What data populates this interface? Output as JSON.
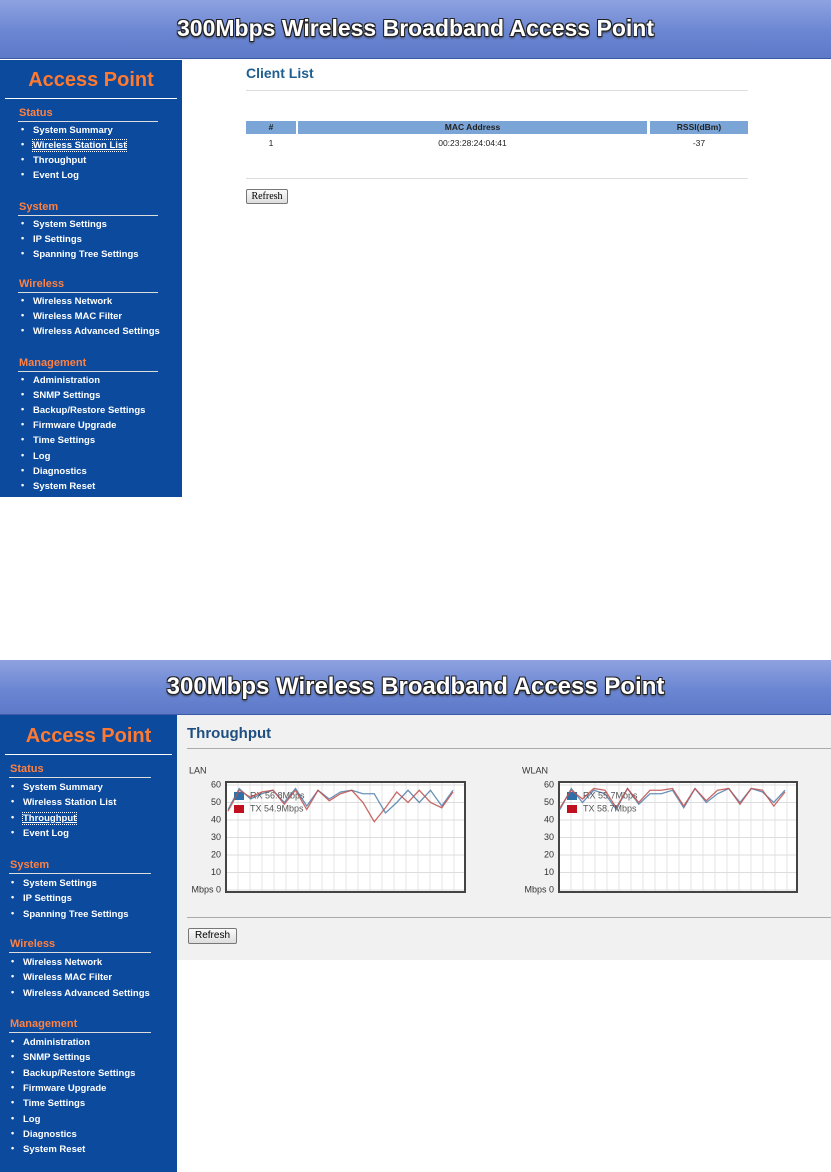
{
  "screens": [
    {
      "header": {
        "title": "300Mbps Wireless Broadband Access Point"
      },
      "sidebar": {
        "title": "Access Point",
        "active": {
          "section": 0,
          "item": 1
        },
        "sections": [
          {
            "title": "Status",
            "items": [
              "System Summary",
              "Wireless Station List",
              "Throughput",
              "Event Log"
            ]
          },
          {
            "title": "System",
            "items": [
              "System Settings",
              "IP Settings",
              "Spanning Tree Settings"
            ]
          },
          {
            "title": "Wireless",
            "items": [
              "Wireless Network",
              "Wireless MAC Filter",
              "Wireless Advanced Settings"
            ]
          },
          {
            "title": "Management",
            "items": [
              "Administration",
              "SNMP Settings",
              "Backup/Restore Settings",
              "Firmware Upgrade",
              "Time Settings",
              "Log",
              "Diagnostics",
              "System Reset"
            ]
          }
        ]
      },
      "content": {
        "title": "Client List",
        "table": {
          "columns": [
            "#",
            "MAC Address",
            "RSSI(dBm)"
          ],
          "rows": [
            [
              1,
              "00:23:28:24:04:41",
              -37
            ]
          ]
        },
        "button": "Refresh"
      }
    },
    {
      "header": {
        "title": "300Mbps Wireless Broadband Access Point"
      },
      "sidebar": {
        "title": "Access Point",
        "active": {
          "section": 0,
          "item": 2
        },
        "sections": [
          {
            "title": "Status",
            "items": [
              "System Summary",
              "Wireless Station List",
              "Throughput",
              "Event Log"
            ]
          },
          {
            "title": "System",
            "items": [
              "System Settings",
              "IP Settings",
              "Spanning Tree Settings"
            ]
          },
          {
            "title": "Wireless",
            "items": [
              "Wireless Network",
              "Wireless MAC Filter",
              "Wireless Advanced Settings"
            ]
          },
          {
            "title": "Management",
            "items": [
              "Administration",
              "SNMP Settings",
              "Backup/Restore Settings",
              "Firmware Upgrade",
              "Time Settings",
              "Log",
              "Diagnostics",
              "System Reset"
            ]
          }
        ]
      },
      "content": {
        "title": "Throughput",
        "button": "Refresh"
      }
    }
  ],
  "chart_data": [
    {
      "type": "line",
      "title": "LAN",
      "ylim": [
        0,
        60
      ],
      "yticks": [
        {
          "value": 0,
          "label": "Mbps 0"
        },
        10,
        20,
        30,
        40,
        50,
        60
      ],
      "grid": true,
      "series": [
        {
          "name": "RX 56.8Mbps",
          "color": "#4f7fae",
          "values": [
            46,
            58,
            52,
            55,
            57,
            50,
            58,
            48,
            57,
            52,
            56,
            57,
            55,
            55,
            44,
            50,
            57,
            50,
            57,
            48,
            57
          ]
        },
        {
          "name": "TX 54.9Mbps",
          "color": "#c0504d",
          "values": [
            45,
            57,
            53,
            56,
            57,
            49,
            57,
            46,
            57,
            51,
            55,
            57,
            50,
            39,
            47,
            56,
            50,
            57,
            50,
            47,
            56
          ]
        }
      ]
    },
    {
      "type": "line",
      "title": "WLAN",
      "ylim": [
        0,
        60
      ],
      "yticks": [
        {
          "value": 0,
          "label": "Mbps 0"
        },
        10,
        20,
        30,
        40,
        50,
        60
      ],
      "grid": true,
      "series": [
        {
          "name": "RX 55.7Mbps",
          "color": "#4f7fae",
          "values": [
            46,
            58,
            50,
            57,
            55,
            46,
            58,
            49,
            55,
            55,
            57,
            47,
            58,
            50,
            55,
            58,
            50,
            58,
            56,
            50,
            57
          ]
        },
        {
          "name": "TX 58.7Mbps",
          "color": "#c0504d",
          "values": [
            47,
            57,
            52,
            58,
            57,
            47,
            58,
            50,
            57,
            57,
            58,
            48,
            58,
            51,
            57,
            58,
            49,
            58,
            57,
            48,
            56
          ]
        }
      ]
    }
  ]
}
